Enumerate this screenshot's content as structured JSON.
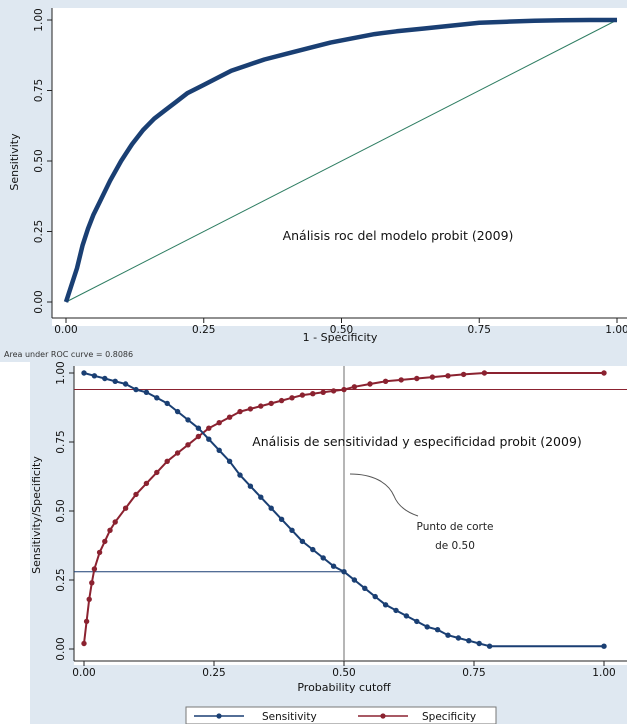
{
  "colors": {
    "page_background": "#dfe8f1",
    "plot_background": "#ffffff",
    "roc_curve": "#1a3f73",
    "reference_line": "#2e7d62",
    "sensitivity": "#1a3f73",
    "specificity": "#8b2230",
    "cutoff_guides": "#6d6d6d"
  },
  "chart_data": [
    {
      "type": "line",
      "xlabel": "1 - Specificity",
      "ylabel": "Sensitivity",
      "xlim": [
        0,
        1
      ],
      "ylim": [
        0,
        1
      ],
      "x_ticks": [
        "0.00",
        "0.25",
        "0.50",
        "0.75",
        "1.00"
      ],
      "y_ticks": [
        "0.00",
        "0.25",
        "0.50",
        "0.75",
        "1.00"
      ],
      "grid": false,
      "annotation": "Análisis roc del modelo probit (2009)",
      "note": "Area under ROC curve = 0.8086",
      "series": [
        {
          "x": [
            0,
            0.01,
            0.02,
            0.03,
            0.04,
            0.05,
            0.06,
            0.08,
            0.1,
            0.12,
            0.14,
            0.16,
            0.18,
            0.2,
            0.22,
            0.25,
            0.28,
            0.3,
            0.33,
            0.36,
            0.4,
            0.44,
            0.48,
            0.52,
            0.56,
            0.6,
            0.65,
            0.7,
            0.75,
            0.8,
            0.85,
            0.9,
            0.95,
            1.0
          ],
          "y": [
            0,
            0.06,
            0.12,
            0.2,
            0.26,
            0.31,
            0.35,
            0.43,
            0.5,
            0.56,
            0.61,
            0.65,
            0.68,
            0.71,
            0.74,
            0.77,
            0.8,
            0.82,
            0.84,
            0.86,
            0.88,
            0.9,
            0.92,
            0.935,
            0.95,
            0.96,
            0.97,
            0.98,
            0.99,
            0.994,
            0.997,
            0.999,
            1.0,
            1.0
          ]
        },
        {
          "x": [
            0,
            1
          ],
          "y": [
            0,
            1
          ]
        }
      ]
    },
    {
      "type": "line",
      "xlabel": "Probability cutoff",
      "ylabel": "Sensitivity/Specificity",
      "xlim": [
        0,
        1
      ],
      "ylim": [
        0,
        1
      ],
      "x_ticks": [
        "0.00",
        "0.25",
        "0.50",
        "0.75",
        "1.00"
      ],
      "y_ticks": [
        "0.00",
        "0.25",
        "0.50",
        "0.75",
        "1.00"
      ],
      "grid": false,
      "legend": "bottom",
      "annotation": "Análisis de sensitividad y especificidad probit (2009)",
      "callout": [
        "Punto de corte",
        "de 0.50"
      ],
      "cutoff": {
        "x": 0.5,
        "sensitivity": 0.28,
        "specificity": 0.94
      },
      "series": [
        {
          "name": "Sensitivity",
          "x": [
            0.0,
            0.02,
            0.04,
            0.06,
            0.08,
            0.1,
            0.12,
            0.14,
            0.16,
            0.18,
            0.2,
            0.22,
            0.24,
            0.26,
            0.28,
            0.3,
            0.32,
            0.34,
            0.36,
            0.38,
            0.4,
            0.42,
            0.44,
            0.46,
            0.48,
            0.5,
            0.52,
            0.54,
            0.56,
            0.58,
            0.6,
            0.62,
            0.64,
            0.66,
            0.68,
            0.7,
            0.72,
            0.74,
            0.76,
            0.78,
            1.0
          ],
          "y": [
            1.0,
            0.99,
            0.98,
            0.97,
            0.96,
            0.94,
            0.93,
            0.91,
            0.89,
            0.86,
            0.83,
            0.8,
            0.76,
            0.72,
            0.68,
            0.63,
            0.59,
            0.55,
            0.51,
            0.47,
            0.43,
            0.39,
            0.36,
            0.33,
            0.3,
            0.28,
            0.25,
            0.22,
            0.19,
            0.16,
            0.14,
            0.12,
            0.1,
            0.08,
            0.07,
            0.05,
            0.04,
            0.03,
            0.02,
            0.01,
            0.01
          ]
        },
        {
          "name": "Specificity",
          "x": [
            0.0,
            0.005,
            0.01,
            0.015,
            0.02,
            0.03,
            0.04,
            0.05,
            0.06,
            0.08,
            0.1,
            0.12,
            0.14,
            0.16,
            0.18,
            0.2,
            0.22,
            0.24,
            0.26,
            0.28,
            0.3,
            0.32,
            0.34,
            0.36,
            0.38,
            0.4,
            0.42,
            0.44,
            0.46,
            0.48,
            0.5,
            0.52,
            0.55,
            0.58,
            0.61,
            0.64,
            0.67,
            0.7,
            0.73,
            0.77,
            1.0
          ],
          "y": [
            0.02,
            0.1,
            0.18,
            0.24,
            0.29,
            0.35,
            0.39,
            0.43,
            0.46,
            0.51,
            0.56,
            0.6,
            0.64,
            0.68,
            0.71,
            0.74,
            0.77,
            0.8,
            0.82,
            0.84,
            0.86,
            0.87,
            0.88,
            0.89,
            0.9,
            0.91,
            0.92,
            0.925,
            0.93,
            0.935,
            0.94,
            0.95,
            0.96,
            0.97,
            0.975,
            0.98,
            0.985,
            0.99,
            0.995,
            1.0,
            1.0
          ]
        }
      ]
    }
  ]
}
